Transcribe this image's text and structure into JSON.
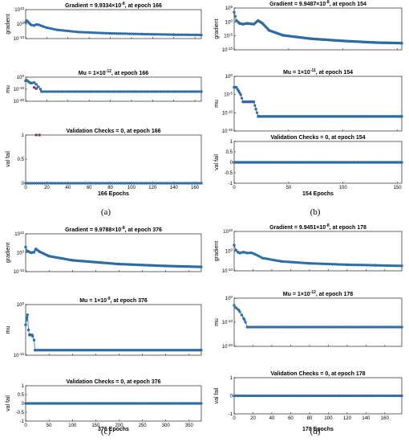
{
  "colors": {
    "marker": "#2E75B6",
    "marker_edge": "#1F4E79",
    "outlier": "#7B3F6E",
    "axes": "#000000"
  },
  "chart_data": [
    {
      "caption": "(a)",
      "xlabel": "166 Epochs",
      "xlim": [
        0,
        166
      ],
      "xticks": [
        "0",
        "20",
        "40",
        "60",
        "80",
        "100",
        "120",
        "140",
        "160"
      ],
      "xtick_values": [
        0,
        20,
        40,
        60,
        80,
        100,
        120,
        140,
        160
      ],
      "subplots": [
        {
          "type": "scatter",
          "title_parts": [
            "Gradient = 9.9334",
            "×",
            "10",
            "-8",
            ", at epoch 166"
          ],
          "ylabel": "gradient",
          "yscale": "log",
          "ylim_exp": [
            -10,
            10
          ],
          "yticks": [
            {
              "base": "10",
              "exp": "10",
              "value": 10
            },
            {
              "base": "10",
              "exp": "0",
              "value": 0
            },
            {
              "base": "10",
              "exp": "-10",
              "value": -10
            }
          ],
          "points_log10": [
            [
              0,
              1.2
            ],
            [
              1,
              2.5
            ],
            [
              3,
              1.0
            ],
            [
              5,
              -0.5
            ],
            [
              8,
              -1.0
            ],
            [
              10,
              -0.3
            ],
            [
              12,
              -0.4
            ],
            [
              16,
              -1.5
            ],
            [
              20,
              -2.5
            ],
            [
              30,
              -4.0
            ],
            [
              50,
              -5.5
            ],
            [
              80,
              -6.4
            ],
            [
              110,
              -6.9
            ],
            [
              140,
              -7.3
            ],
            [
              166,
              -7.5
            ]
          ]
        },
        {
          "type": "scatter",
          "title_parts": [
            "Mu = 1",
            "×",
            "10",
            "-12",
            ", at epoch 166"
          ],
          "ylabel": "mu",
          "yscale": "log",
          "ylim_exp": [
            -20,
            0
          ],
          "yticks": [
            {
              "base": "10",
              "exp": "0",
              "value": 0
            },
            {
              "base": "10",
              "exp": "-10",
              "value": -10
            },
            {
              "base": "10",
              "exp": "-20",
              "value": -20
            }
          ],
          "points_log10": [
            [
              0,
              -3
            ],
            [
              1,
              -2.5
            ],
            [
              3,
              -4
            ],
            [
              5,
              -5
            ],
            [
              8,
              -4.5
            ],
            [
              10,
              -6
            ],
            [
              12,
              -8
            ],
            [
              14,
              -10
            ],
            [
              15,
              -12
            ],
            [
              166,
              -12
            ]
          ],
          "highlight_log10": [
            [
              8,
              -8.5
            ],
            [
              10,
              -9.5
            ]
          ]
        },
        {
          "type": "scatter",
          "title_parts": [
            "Validation Checks = 0, at epoch 166"
          ],
          "ylabel": "val fail",
          "yscale": "linear",
          "ylim": [
            0,
            1
          ],
          "yticks": [
            {
              "label": "1",
              "value": 1
            },
            {
              "label": "0.5",
              "value": 0.5
            },
            {
              "label": "0",
              "value": 0
            }
          ],
          "points": [
            [
              0,
              0
            ],
            [
              166,
              0
            ]
          ],
          "highlight": [
            [
              10,
              1
            ],
            [
              13,
              1
            ]
          ]
        }
      ]
    },
    {
      "caption": "(b)",
      "xlabel": "154 Epochs",
      "xlim": [
        0,
        154
      ],
      "xticks": [
        "0",
        "50",
        "100",
        "150"
      ],
      "xtick_values": [
        0,
        50,
        100,
        150
      ],
      "subplots": [
        {
          "type": "scatter",
          "title_parts": [
            "Gradient = 9.9487",
            "×",
            "10",
            "-8",
            ", at epoch 154"
          ],
          "ylabel": "gradient",
          "yscale": "log",
          "ylim_exp": [
            -10,
            5
          ],
          "yticks": [
            {
              "base": "10",
              "exp": "5",
              "value": 5
            },
            {
              "base": "10",
              "exp": "0",
              "value": 0
            },
            {
              "base": "10",
              "exp": "-5",
              "value": -5
            },
            {
              "base": "10",
              "exp": "-10",
              "value": -10
            }
          ],
          "points_log10": [
            [
              0,
              3.5
            ],
            [
              2,
              0.5
            ],
            [
              5,
              -0.5
            ],
            [
              8,
              -0.8
            ],
            [
              12,
              -0.5
            ],
            [
              18,
              -0.8
            ],
            [
              22,
              0.5
            ],
            [
              26,
              -0.5
            ],
            [
              32,
              -3.0
            ],
            [
              45,
              -4.8
            ],
            [
              70,
              -6.0
            ],
            [
              100,
              -6.8
            ],
            [
              130,
              -7.4
            ],
            [
              154,
              -7.6
            ]
          ]
        },
        {
          "type": "scatter",
          "title_parts": [
            "Mu = 1",
            "×",
            "10",
            "-11",
            ", at epoch 154"
          ],
          "ylabel": "mu",
          "yscale": "log",
          "ylim_exp": [
            -15,
            0
          ],
          "yticks": [
            {
              "base": "10",
              "exp": "0",
              "value": 0
            },
            {
              "base": "10",
              "exp": "-5",
              "value": -5
            },
            {
              "base": "10",
              "exp": "-10",
              "value": -10
            },
            {
              "base": "10",
              "exp": "-15",
              "value": -15
            }
          ],
          "points_log10": [
            [
              0,
              -3
            ],
            [
              2,
              -3
            ],
            [
              4,
              -4
            ],
            [
              6,
              -5
            ],
            [
              8,
              -7
            ],
            [
              18,
              -7
            ],
            [
              20,
              -9
            ],
            [
              22,
              -11
            ],
            [
              154,
              -11
            ]
          ]
        },
        {
          "type": "scatter",
          "title_parts": [
            "Validation Checks = 0, at epoch 154"
          ],
          "ylabel": "val fail",
          "yscale": "linear",
          "ylim": [
            -1,
            1
          ],
          "yticks": [
            {
              "label": "1",
              "value": 1
            },
            {
              "label": "0.5",
              "value": 0.5
            },
            {
              "label": "0",
              "value": 0
            },
            {
              "label": "-0.5",
              "value": -0.5
            },
            {
              "label": "-1",
              "value": -1
            }
          ],
          "points": [
            [
              0,
              0
            ],
            [
              154,
              0
            ]
          ]
        }
      ]
    },
    {
      "caption": "(c)",
      "xlabel": "376 Epochs",
      "xlim": [
        0,
        376
      ],
      "xticks": [
        "0",
        "50",
        "100",
        "150",
        "200",
        "250",
        "300",
        "350"
      ],
      "xtick_values": [
        0,
        50,
        100,
        150,
        200,
        250,
        300,
        350
      ],
      "subplots": [
        {
          "type": "scatter",
          "title_parts": [
            "Gradient = 9.9788",
            "×",
            "10",
            "-8",
            ", at epoch 376"
          ],
          "ylabel": "gradient",
          "yscale": "log",
          "ylim_exp": [
            -10,
            10
          ],
          "yticks": [
            {
              "base": "10",
              "exp": "10",
              "value": 10
            },
            {
              "base": "10",
              "exp": "0",
              "value": 0
            },
            {
              "base": "10",
              "exp": "-10",
              "value": -10
            }
          ],
          "points_log10": [
            [
              0,
              3.0
            ],
            [
              3,
              1.0
            ],
            [
              7,
              0.5
            ],
            [
              12,
              0.0
            ],
            [
              18,
              0.3
            ],
            [
              22,
              2.0
            ],
            [
              30,
              0.5
            ],
            [
              50,
              -1.8
            ],
            [
              100,
              -4.0
            ],
            [
              200,
              -6.0
            ],
            [
              300,
              -7.0
            ],
            [
              376,
              -7.5
            ]
          ]
        },
        {
          "type": "scatter",
          "title_parts": [
            "Mu = 1",
            "×",
            "10",
            "-9",
            ", at epoch 376"
          ],
          "ylabel": "mu",
          "yscale": "log",
          "ylim_exp": [
            -10,
            0
          ],
          "yticks": [
            {
              "base": "10",
              "exp": "0",
              "value": 0
            },
            {
              "base": "10",
              "exp": "-10",
              "value": -10
            }
          ],
          "points_log10": [
            [
              0,
              -4
            ],
            [
              2,
              -3
            ],
            [
              4,
              -2
            ],
            [
              6,
              -5
            ],
            [
              8,
              -6
            ],
            [
              10,
              -6
            ],
            [
              14,
              -6
            ],
            [
              18,
              -7
            ],
            [
              20,
              -9
            ],
            [
              376,
              -9
            ]
          ]
        },
        {
          "type": "scatter",
          "title_parts": [
            "Validation Checks = 0, at epoch 376"
          ],
          "ylabel": "val fail",
          "yscale": "linear",
          "ylim": [
            -1,
            1
          ],
          "yticks": [
            {
              "label": "1",
              "value": 1
            },
            {
              "label": "0.5",
              "value": 0.5
            },
            {
              "label": "0",
              "value": 0
            },
            {
              "label": "-0.5",
              "value": -0.5
            },
            {
              "label": "-1",
              "value": -1
            }
          ],
          "points": [
            [
              0,
              0
            ],
            [
              376,
              0
            ]
          ]
        }
      ]
    },
    {
      "caption": "(d)",
      "xlabel": "178 Epochs",
      "xlim": [
        0,
        178
      ],
      "xticks": [
        "0",
        "20",
        "40",
        "60",
        "80",
        "100",
        "120",
        "140",
        "160"
      ],
      "xtick_values": [
        0,
        20,
        40,
        60,
        80,
        100,
        120,
        140,
        160
      ],
      "subplots": [
        {
          "type": "scatter",
          "title_parts": [
            "Gradient = 9.9451",
            "×",
            "10",
            "-8",
            ", at epoch 178"
          ],
          "ylabel": "gradient",
          "yscale": "log",
          "ylim_exp": [
            -10,
            10
          ],
          "yticks": [
            {
              "base": "10",
              "exp": "10",
              "value": 10
            },
            {
              "base": "10",
              "exp": "0",
              "value": 0
            },
            {
              "base": "10",
              "exp": "-10",
              "value": -10
            }
          ],
          "points_log10": [
            [
              0,
              3.0
            ],
            [
              2,
              0.5
            ],
            [
              4,
              -0.5
            ],
            [
              6,
              -1.0
            ],
            [
              10,
              -0.5
            ],
            [
              14,
              -1.0
            ],
            [
              18,
              -0.8
            ],
            [
              22,
              -1.5
            ],
            [
              30,
              -3.5
            ],
            [
              50,
              -5.2
            ],
            [
              80,
              -6.2
            ],
            [
              120,
              -6.9
            ],
            [
              150,
              -7.2
            ],
            [
              178,
              -7.5
            ]
          ]
        },
        {
          "type": "scatter",
          "title_parts": [
            "Mu = 1",
            "×",
            "10",
            "-12",
            ", at epoch 178"
          ],
          "ylabel": "mu",
          "yscale": "log",
          "ylim_exp": [
            -20,
            0
          ],
          "yticks": [
            {
              "base": "10",
              "exp": "0",
              "value": 0
            },
            {
              "base": "10",
              "exp": "-10",
              "value": -10
            },
            {
              "base": "10",
              "exp": "-20",
              "value": -20
            }
          ],
          "points_log10": [
            [
              0,
              -3
            ],
            [
              2,
              -4
            ],
            [
              5,
              -5
            ],
            [
              8,
              -7
            ],
            [
              11,
              -9
            ],
            [
              14,
              -12
            ],
            [
              178,
              -12
            ]
          ]
        },
        {
          "type": "scatter",
          "title_parts": [
            "Validation Checks = 0, at epoch 178"
          ],
          "ylabel": "val fail",
          "yscale": "linear",
          "ylim": [
            -1,
            1
          ],
          "yticks": [
            {
              "label": "1",
              "value": 1
            },
            {
              "label": "0",
              "value": 0
            },
            {
              "label": "-1",
              "value": -1
            }
          ],
          "points": [
            [
              0,
              0
            ],
            [
              178,
              0
            ]
          ]
        }
      ]
    }
  ]
}
